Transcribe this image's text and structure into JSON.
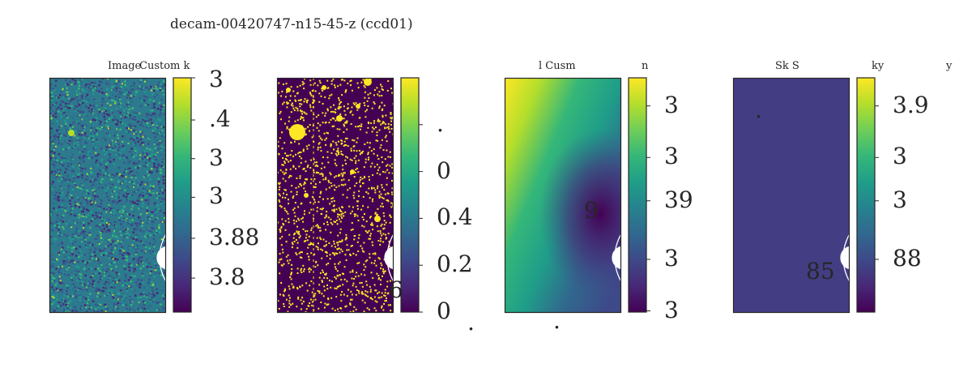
{
  "chart_data": {
    "type": "heatmap",
    "title": "decam-00420747-n15-45-z (ccd01)",
    "panels": [
      {
        "id": "image",
        "image_title": "Image",
        "colorbar_title": "Custom k",
        "colormap": "viridis",
        "content": "noisy-image",
        "colorbar_ticks": [
          {
            "label": "3",
            "frac": 1.0
          },
          {
            "label": ".4",
            "frac": 0.82
          },
          {
            "label": "3",
            "frac": 0.655
          },
          {
            "label": "3",
            "frac": 0.49
          },
          {
            "label": "3.88",
            "frac": 0.315
          },
          {
            "label": "3.8",
            "frac": 0.145
          }
        ],
        "stray_labels": []
      },
      {
        "id": "mask",
        "image_title": "",
        "colorbar_title": "",
        "colormap": "viridis",
        "content": "binary-mask",
        "colorbar_ticks": [
          {
            "label": ".",
            "frac": 0.8
          },
          {
            "label": "0",
            "frac": 0.6
          },
          {
            "label": "0.4",
            "frac": 0.4
          },
          {
            "label": "0.2",
            "frac": 0.2
          },
          {
            "label": "0",
            "frac": 0.0
          }
        ],
        "stray_labels": [
          {
            "label": "6",
            "dx": 138,
            "dy": 248
          },
          {
            "label": ".",
            "dx": 235,
            "dy": 288
          }
        ]
      },
      {
        "id": "model",
        "image_title": "l Cusm",
        "colorbar_title": "n",
        "colormap": "viridis",
        "content": "smooth-gradient",
        "colorbar_ticks": [
          {
            "label": "3",
            "frac": 0.88
          },
          {
            "label": "3",
            "frac": 0.66
          },
          {
            "label": "39",
            "frac": 0.475
          },
          {
            "label": "3",
            "frac": 0.225
          },
          {
            "label": "3",
            "frac": 0.005
          }
        ],
        "stray_labels": [
          {
            "label": "9",
            "dx": 98,
            "dy": 150
          },
          {
            "label": ".",
            "dx": 60,
            "dy": 286
          }
        ]
      },
      {
        "id": "sky",
        "image_title": "Sk S",
        "colorbar_title": "ky",
        "extra_title": "y",
        "colormap": "viridis",
        "content": "flat",
        "colorbar_ticks": [
          {
            "label": "3.9",
            "frac": 0.88
          },
          {
            "label": "3",
            "frac": 0.66
          },
          {
            "label": "3",
            "frac": 0.475
          },
          {
            "label": "88",
            "frac": 0.225
          }
        ],
        "stray_labels": [
          {
            "label": "85",
            "dx": 90,
            "dy": 225
          },
          {
            "label": ".",
            "dx": 27,
            "dy": 26
          }
        ]
      }
    ],
    "overlay": "concentric circles (white)"
  },
  "colors": {
    "viridis": [
      "#440154",
      "#482878",
      "#3e4989",
      "#31688e",
      "#26828e",
      "#1f9e89",
      "#35b779",
      "#6ece58",
      "#b5de2b",
      "#fde725"
    ],
    "flat_fill": "#433d84",
    "circle": "#ffffff",
    "frame": "#262626",
    "text": "#262626"
  }
}
